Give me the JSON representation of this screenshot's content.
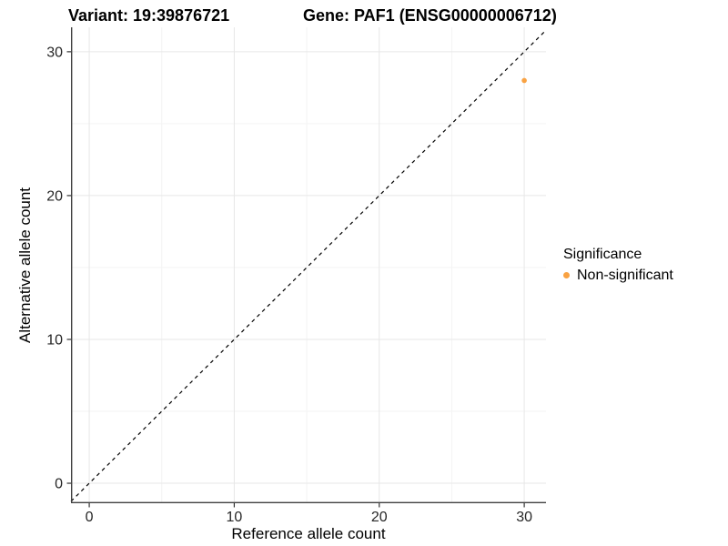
{
  "chart_data": {
    "type": "scatter",
    "titles": {
      "left": "Variant: 19:39876721",
      "right": "Gene: PAF1 (ENSG00000006712)"
    },
    "xlabel": "Reference allele count",
    "ylabel": "Alternative allele count",
    "xlim": [
      -1.26,
      31.5
    ],
    "ylim": [
      -1.39,
      31.7
    ],
    "xticks": [
      0,
      10,
      20,
      30
    ],
    "yticks": [
      0,
      10,
      20,
      30
    ],
    "xticks_minor": [
      5,
      15,
      25
    ],
    "yticks_minor": [
      5,
      15,
      25
    ],
    "grid": "major+minor",
    "identity_line": {
      "style": "dashed",
      "equation": "y = x",
      "color": "#000000"
    },
    "series": [
      {
        "name": "Non-significant",
        "color": "#F9A242",
        "points": [
          {
            "x": 30,
            "y": 28
          }
        ]
      }
    ],
    "legend": {
      "title": "Significance",
      "position": "right",
      "items": [
        {
          "label": "Non-significant",
          "color": "#F9A242"
        }
      ]
    }
  },
  "colors": {
    "background": "#FFFFFF",
    "axis_line": "#404040",
    "tick_mark": "#333333",
    "tick_label": "#262626",
    "grid_major": "#E7E7E7",
    "grid_minor": "#F3F3F3",
    "dashed_line": "#000000",
    "point": "#F9A242"
  }
}
